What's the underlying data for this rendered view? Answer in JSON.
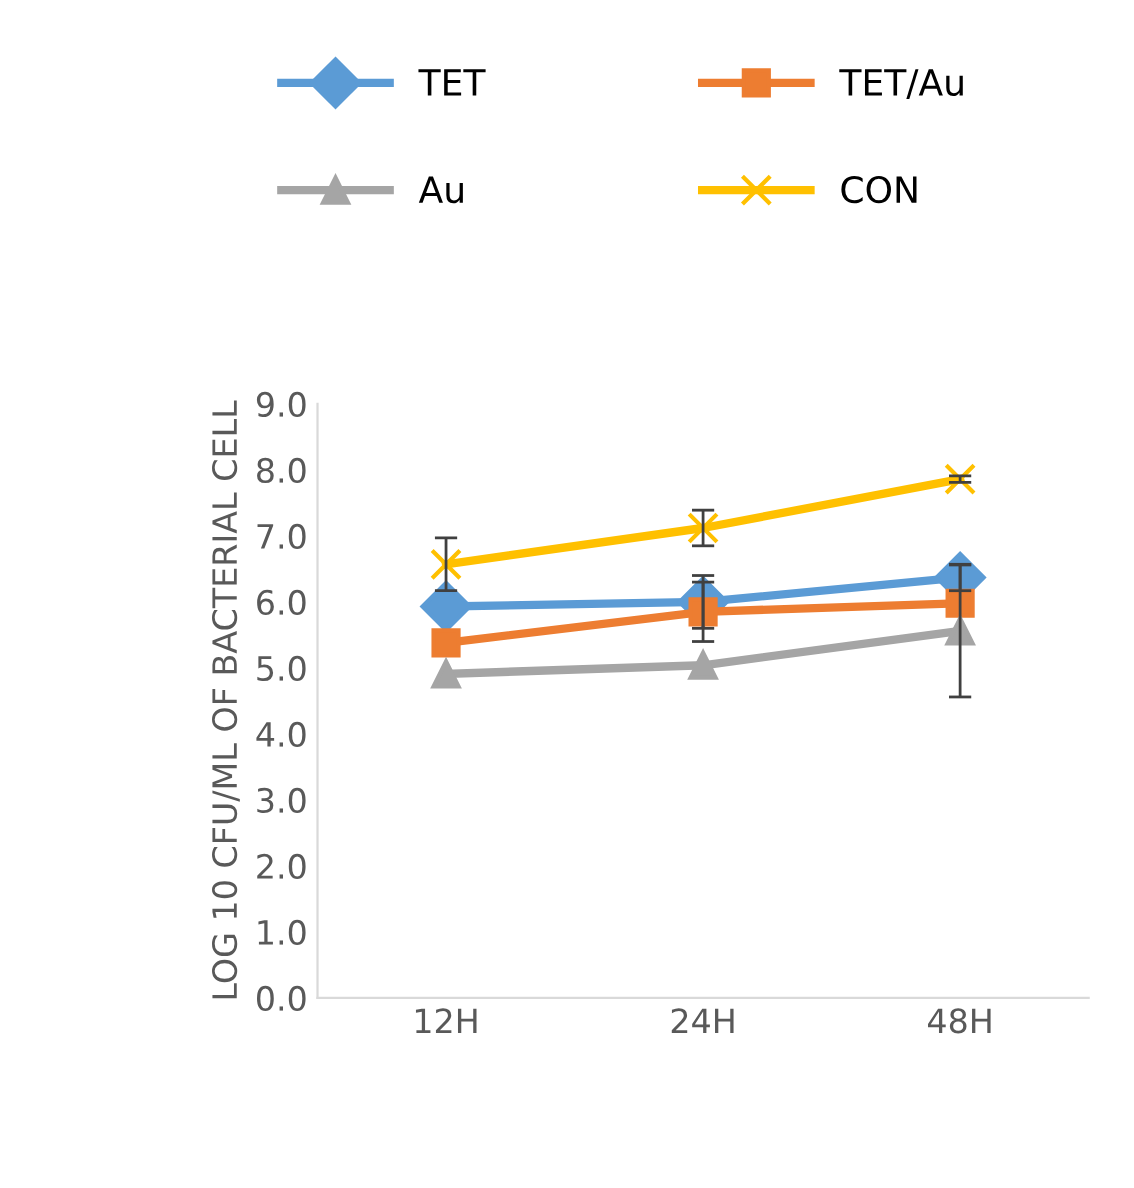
{
  "chart_data": {
    "type": "line",
    "ylabel": "LOG 10 CFU/ML OF BACTERIAL CELL",
    "categories": [
      "12H",
      "24H",
      "48H"
    ],
    "series": [
      {
        "name": "TET",
        "color": "#5b9bd5",
        "marker": "diamond",
        "values": [
          5.93,
          6.0,
          6.37
        ],
        "errors": [
          null,
          0.4,
          0.2
        ]
      },
      {
        "name": "TET/Au",
        "color": "#ed7d31",
        "marker": "square",
        "values": [
          5.38,
          5.85,
          5.98
        ],
        "errors": [
          null,
          0.45,
          null
        ]
      },
      {
        "name": "Au",
        "color": "#a5a5a5",
        "marker": "triangle",
        "values": [
          4.91,
          5.04,
          5.56
        ],
        "errors": [
          null,
          null,
          1.0
        ]
      },
      {
        "name": "CON",
        "color": "#ffc000",
        "marker": "cross",
        "values": [
          6.57,
          7.12,
          7.86
        ],
        "errors": [
          0.4,
          0.27,
          0.05
        ]
      }
    ],
    "ylim": [
      0,
      9
    ],
    "yticks": [
      {
        "value": 0,
        "label": "0.0"
      },
      {
        "value": 1,
        "label": "1.0"
      },
      {
        "value": 2,
        "label": "2.0"
      },
      {
        "value": 3,
        "label": "3.0"
      },
      {
        "value": 4,
        "label": "4.0"
      },
      {
        "value": 5,
        "label": "5.0"
      },
      {
        "value": 6,
        "label": "6.0"
      },
      {
        "value": 7,
        "label": "7.0"
      },
      {
        "value": 8,
        "label": "8.0"
      },
      {
        "value": 9,
        "label": "9.0"
      }
    ],
    "grid": false,
    "legend": "top",
    "line_style": "solid"
  }
}
